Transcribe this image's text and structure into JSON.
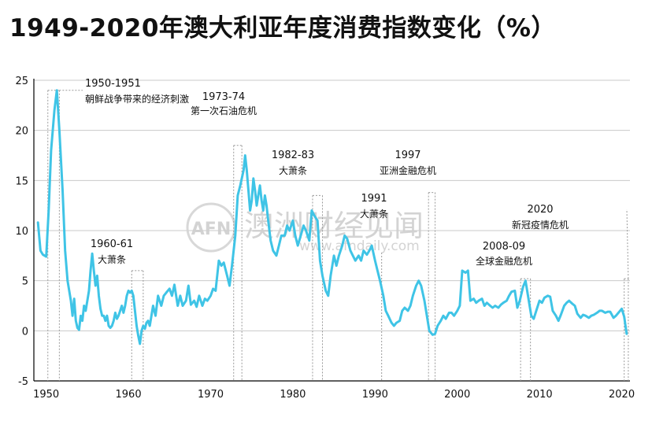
{
  "title": "1949-2020年澳大利亚年度消费指数变化（%）",
  "watermark": {
    "logo": "AFN",
    "cn": "澳洲财经见闻",
    "url": "www.afndaily.com"
  },
  "colors": {
    "line": "#3fc4e6",
    "grid": "#c9c9c9",
    "text": "#111111",
    "guide": "#9a9a9a"
  },
  "chart_data": {
    "type": "line",
    "title": "1949-2020年澳大利亚年度消费指数变化（%）",
    "xlabel": "",
    "ylabel": "",
    "xlim": [
      1948.5,
      2021
    ],
    "ylim": [
      -5,
      25
    ],
    "grid": "horizontal",
    "x_ticks": [
      1950,
      1960,
      1970,
      1980,
      1990,
      2000,
      2010,
      2020
    ],
    "y_ticks": [
      25,
      20,
      15,
      10,
      5,
      0,
      -5
    ],
    "series": [
      {
        "name": "",
        "x": [
          1949.0,
          1949.3,
          1949.6,
          1950.0,
          1950.3,
          1950.6,
          1951.0,
          1951.3,
          1951.6,
          1952.0,
          1952.3,
          1952.6,
          1953.0,
          1953.2,
          1953.4,
          1953.6,
          1953.8,
          1954.0,
          1954.2,
          1954.4,
          1954.6,
          1954.8,
          1955.0,
          1955.2,
          1955.4,
          1955.6,
          1955.8,
          1956.0,
          1956.2,
          1956.4,
          1956.6,
          1956.8,
          1957.0,
          1957.2,
          1957.4,
          1957.6,
          1957.8,
          1958.0,
          1958.2,
          1958.4,
          1958.6,
          1958.8,
          1959.0,
          1959.2,
          1959.4,
          1959.6,
          1959.8,
          1960.0,
          1960.2,
          1960.4,
          1960.6,
          1960.8,
          1961.0,
          1961.2,
          1961.4,
          1961.6,
          1961.8,
          1962.0,
          1962.2,
          1962.4,
          1962.6,
          1962.8,
          1963.0,
          1963.3,
          1963.6,
          1964.0,
          1964.3,
          1964.6,
          1965.0,
          1965.3,
          1965.6,
          1966.0,
          1966.3,
          1966.6,
          1967.0,
          1967.3,
          1967.6,
          1968.0,
          1968.3,
          1968.6,
          1969.0,
          1969.3,
          1969.6,
          1970.0,
          1970.3,
          1970.6,
          1971.0,
          1971.3,
          1971.6,
          1972.0,
          1972.3,
          1972.6,
          1973.0,
          1973.3,
          1973.6,
          1974.0,
          1974.2,
          1974.4,
          1974.6,
          1974.8,
          1975.0,
          1975.2,
          1975.4,
          1975.6,
          1975.8,
          1976.0,
          1976.2,
          1976.4,
          1976.6,
          1976.8,
          1977.0,
          1977.3,
          1977.6,
          1978.0,
          1978.3,
          1978.6,
          1979.0,
          1979.3,
          1979.6,
          1980.0,
          1980.3,
          1980.6,
          1981.0,
          1981.3,
          1981.6,
          1982.0,
          1982.3,
          1982.6,
          1983.0,
          1983.3,
          1983.6,
          1984.0,
          1984.3,
          1984.6,
          1985.0,
          1985.3,
          1985.6,
          1986.0,
          1986.3,
          1986.6,
          1987.0,
          1987.3,
          1987.6,
          1988.0,
          1988.3,
          1988.6,
          1989.0,
          1989.3,
          1989.6,
          1990.0,
          1990.3,
          1990.6,
          1991.0,
          1991.3,
          1991.6,
          1992.0,
          1992.3,
          1992.6,
          1993.0,
          1993.3,
          1993.6,
          1994.0,
          1994.3,
          1994.6,
          1995.0,
          1995.3,
          1995.6,
          1996.0,
          1996.3,
          1996.6,
          1997.0,
          1997.3,
          1997.6,
          1998.0,
          1998.3,
          1998.6,
          1999.0,
          1999.3,
          1999.6,
          2000.0,
          2000.3,
          2000.6,
          2001.0,
          2001.3,
          2001.6,
          2002.0,
          2002.3,
          2002.6,
          2003.0,
          2003.3,
          2003.6,
          2004.0,
          2004.3,
          2004.6,
          2005.0,
          2005.3,
          2005.6,
          2006.0,
          2006.3,
          2006.6,
          2007.0,
          2007.3,
          2007.6,
          2008.0,
          2008.3,
          2008.6,
          2009.0,
          2009.3,
          2009.6,
          2010.0,
          2010.3,
          2010.6,
          2011.0,
          2011.3,
          2011.6,
          2012.0,
          2012.3,
          2012.6,
          2013.0,
          2013.3,
          2013.6,
          2014.0,
          2014.3,
          2014.6,
          2015.0,
          2015.3,
          2015.6,
          2016.0,
          2016.3,
          2016.6,
          2017.0,
          2017.3,
          2017.6,
          2018.0,
          2018.3,
          2018.6,
          2019.0,
          2019.3,
          2019.6,
          2020.0,
          2020.3,
          2020.6
        ],
        "values": [
          10.8,
          8.0,
          7.6,
          7.4,
          12.0,
          18.0,
          22.0,
          24.0,
          20.0,
          14.0,
          8.0,
          5.0,
          3.0,
          1.5,
          3.2,
          1.0,
          0.3,
          0.1,
          1.5,
          1.0,
          2.5,
          2.0,
          3.0,
          4.0,
          6.0,
          7.7,
          6.0,
          4.5,
          5.5,
          3.5,
          2.2,
          1.5,
          1.5,
          1.0,
          1.5,
          0.5,
          0.3,
          0.5,
          1.0,
          1.8,
          1.2,
          1.5,
          2.0,
          2.5,
          1.8,
          2.5,
          3.5,
          4.0,
          3.8,
          4.0,
          3.5,
          2.0,
          0.5,
          -0.5,
          -1.3,
          0.0,
          0.5,
          0.2,
          0.8,
          1.0,
          0.5,
          1.5,
          2.5,
          1.5,
          3.5,
          2.5,
          3.5,
          3.8,
          4.2,
          3.5,
          4.6,
          2.5,
          3.5,
          2.5,
          3.0,
          4.5,
          2.6,
          3.0,
          2.4,
          3.5,
          2.5,
          3.2,
          3.0,
          3.5,
          4.2,
          4.0,
          7.0,
          6.5,
          6.8,
          5.5,
          4.5,
          6.5,
          9.5,
          13.5,
          14.5,
          16.0,
          17.5,
          16.0,
          14.0,
          12.0,
          13.0,
          15.2,
          14.0,
          12.5,
          13.5,
          14.5,
          13.0,
          12.0,
          13.5,
          12.5,
          11.0,
          9.0,
          8.0,
          7.5,
          8.5,
          9.5,
          9.5,
          10.5,
          10.0,
          11.0,
          9.5,
          8.5,
          9.6,
          10.5,
          10.0,
          9.0,
          12.0,
          11.5,
          11.0,
          7.0,
          5.5,
          4.0,
          3.5,
          5.5,
          7.5,
          6.5,
          7.5,
          8.5,
          9.5,
          9.2,
          8.0,
          7.5,
          7.0,
          7.5,
          7.0,
          8.0,
          7.6,
          8.0,
          8.5,
          7.0,
          6.0,
          5.0,
          3.5,
          2.0,
          1.5,
          0.8,
          0.5,
          0.8,
          1.0,
          2.0,
          2.3,
          2.0,
          2.5,
          3.5,
          4.5,
          5.0,
          4.5,
          3.0,
          1.5,
          0.0,
          -0.4,
          -0.3,
          0.5,
          1.0,
          1.5,
          1.2,
          1.8,
          1.8,
          1.5,
          2.0,
          2.5,
          6.0,
          5.8,
          6.0,
          3.0,
          3.2,
          2.8,
          3.0,
          3.2,
          2.5,
          2.8,
          2.5,
          2.3,
          2.5,
          2.3,
          2.6,
          2.8,
          3.0,
          3.5,
          3.9,
          4.0,
          2.3,
          3.0,
          4.4,
          5.0,
          3.5,
          1.5,
          1.2,
          2.0,
          3.0,
          2.8,
          3.3,
          3.5,
          3.4,
          2.0,
          1.5,
          1.0,
          1.6,
          2.5,
          2.8,
          3.0,
          2.7,
          2.5,
          1.7,
          1.3,
          1.6,
          1.5,
          1.3,
          1.5,
          1.6,
          1.8,
          2.0,
          2.0,
          1.8,
          1.9,
          1.9,
          1.3,
          1.5,
          1.8,
          2.2,
          1.4,
          -0.3
        ]
      }
    ],
    "annotations": [
      {
        "year_label": "1950-1951",
        "desc": "朝鲜战争带来的经济刺激",
        "x_from": 1950.2,
        "x_to": 1951.6,
        "value": 24.0
      },
      {
        "year_label": "1960-61",
        "desc": "大萧条",
        "x_from": 1960.4,
        "x_to": 1961.8,
        "value": 6.0
      },
      {
        "year_label": "1973-74",
        "desc": "第一次石油危机",
        "x_from": 1972.8,
        "x_to": 1973.8,
        "value": 18.5
      },
      {
        "year_label": "1982-83",
        "desc": "大萧条",
        "x_from": 1982.4,
        "x_to": 1983.6,
        "value": 13.5
      },
      {
        "year_label": "1991",
        "desc": "大萧条",
        "x_from": 1990.8,
        "x_to": 1990.8,
        "value": 7.8
      },
      {
        "year_label": "1997",
        "desc": "亚洲金融危机",
        "x_from": 1996.5,
        "x_to": 1997.3,
        "value": 13.8
      },
      {
        "year_label": "2008-09",
        "desc": "全球金融危机",
        "x_from": 2007.7,
        "x_to": 2008.9,
        "value": 5.2
      },
      {
        "year_label": "2020",
        "desc": "新冠疫情危机",
        "x_from": 2020.3,
        "x_to": 2020.8,
        "value": 5.2
      }
    ]
  }
}
